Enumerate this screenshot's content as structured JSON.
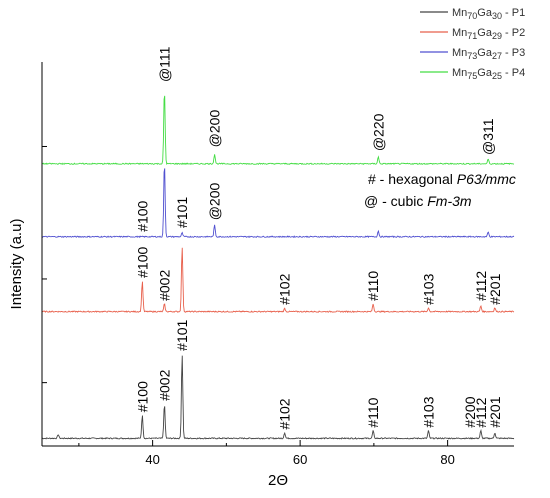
{
  "chart_data": {
    "type": "line",
    "xlabel": "2Θ",
    "ylabel": "Intensity (a.u)",
    "xlim": [
      25,
      89
    ],
    "x_ticks": [
      40,
      60,
      80
    ],
    "y_ticks_shown_without_labels": true,
    "grid": false,
    "legend_position": "top-right",
    "series": [
      {
        "name_parts": [
          "Mn",
          "70",
          "Ga",
          "30",
          " - P1"
        ],
        "color": "#444444",
        "baseline": 0.02,
        "peaks": [
          {
            "x": 27.2,
            "h": 0.01
          },
          {
            "x": 38.6,
            "h": 0.06
          },
          {
            "x": 41.6,
            "h": 0.09
          },
          {
            "x": 44.0,
            "h": 0.22
          },
          {
            "x": 57.9,
            "h": 0.015
          },
          {
            "x": 69.9,
            "h": 0.02
          },
          {
            "x": 77.4,
            "h": 0.02
          },
          {
            "x": 84.5,
            "h": 0.02
          },
          {
            "x": 86.4,
            "h": 0.015
          }
        ]
      },
      {
        "name_parts": [
          "Mn",
          "71",
          "Ga",
          "29",
          " - P2"
        ],
        "color": "#e8604c",
        "baseline": 0.35,
        "peaks": [
          {
            "x": 38.6,
            "h": 0.08
          },
          {
            "x": 41.6,
            "h": 0.02
          },
          {
            "x": 44.0,
            "h": 0.17
          },
          {
            "x": 57.9,
            "h": 0.008
          },
          {
            "x": 69.9,
            "h": 0.02
          },
          {
            "x": 77.4,
            "h": 0.01
          },
          {
            "x": 84.5,
            "h": 0.015
          },
          {
            "x": 86.4,
            "h": 0.01
          }
        ]
      },
      {
        "name_parts": [
          "Mn",
          "73",
          "Ga",
          "27",
          " - P3"
        ],
        "color": "#5050d0",
        "baseline": 0.545,
        "peaks": [
          {
            "x": 41.6,
            "h": 0.195
          },
          {
            "x": 44.0,
            "h": 0.01
          },
          {
            "x": 48.4,
            "h": 0.03
          },
          {
            "x": 70.6,
            "h": 0.015
          },
          {
            "x": 85.5,
            "h": 0.012
          }
        ]
      },
      {
        "name_parts": [
          "Mn",
          "75",
          "Ga",
          "25",
          " - P4"
        ],
        "color": "#44dd44",
        "baseline": 0.735,
        "peaks": [
          {
            "x": 41.6,
            "h": 0.195
          },
          {
            "x": 48.4,
            "h": 0.025
          },
          {
            "x": 70.6,
            "h": 0.018
          },
          {
            "x": 85.5,
            "h": 0.012
          }
        ]
      }
    ],
    "annotations": [
      {
        "text": "#100",
        "x": 38.6,
        "y": 0.08
      },
      {
        "text": "#002",
        "x": 41.6,
        "y": 0.11
      },
      {
        "text": "#101",
        "x": 44.0,
        "y": 0.24
      },
      {
        "text": "#102",
        "x": 57.9,
        "y": 0.035
      },
      {
        "text": "#110",
        "x": 69.9,
        "y": 0.04
      },
      {
        "text": "#103",
        "x": 77.4,
        "y": 0.04
      },
      {
        "text": "#200",
        "x": 83.0,
        "y": 0.04
      },
      {
        "text": "#112",
        "x": 84.5,
        "y": 0.04
      },
      {
        "text": "#201",
        "x": 86.4,
        "y": 0.04
      },
      {
        "text": "#100",
        "x": 38.6,
        "y": 0.43
      },
      {
        "text": "#002",
        "x": 41.6,
        "y": 0.37
      },
      {
        "text": "#102",
        "x": 57.9,
        "y": 0.36
      },
      {
        "text": "#110",
        "x": 69.9,
        "y": 0.37
      },
      {
        "text": "#103",
        "x": 77.4,
        "y": 0.36
      },
      {
        "text": "#112",
        "x": 84.5,
        "y": 0.37
      },
      {
        "text": "#201",
        "x": 86.4,
        "y": 0.36
      },
      {
        "text": "#100",
        "x": 38.6,
        "y": 0.55
      },
      {
        "text": "#101",
        "x": 44.0,
        "y": 0.56
      },
      {
        "text": "@200",
        "x": 48.4,
        "y": 0.58
      },
      {
        "text": "@111",
        "x": 41.6,
        "y": 0.94
      },
      {
        "text": "@200",
        "x": 48.4,
        "y": 0.77
      },
      {
        "text": "@220",
        "x": 70.6,
        "y": 0.76
      },
      {
        "text": "@311",
        "x": 85.5,
        "y": 0.75
      }
    ],
    "note": {
      "line1_prefix": "# - hexagonal ",
      "line1_italic": "P63/mmc",
      "line2_prefix": "@ - cubic ",
      "line2_italic": "Fm-3m"
    }
  }
}
